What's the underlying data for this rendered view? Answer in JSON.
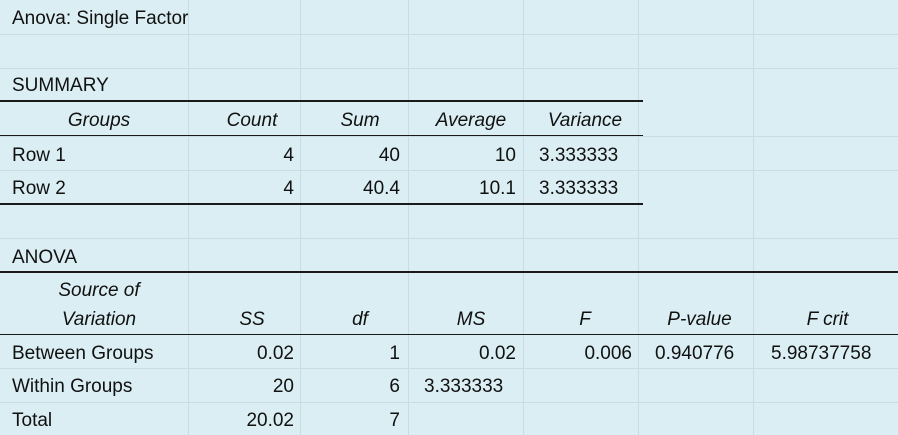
{
  "title": "Anova: Single Factor",
  "summary": {
    "label": "SUMMARY",
    "headers": [
      "Groups",
      "Count",
      "Sum",
      "Average",
      "Variance"
    ],
    "rows": [
      [
        "Row 1",
        "4",
        "40",
        "10",
        "3.333333"
      ],
      [
        "Row 2",
        "4",
        "40.4",
        "10.1",
        "3.333333"
      ]
    ]
  },
  "anova": {
    "label": "ANOVA",
    "source_line1": "Source of",
    "source_line2": "Variation",
    "headers": [
      "SS",
      "df",
      "MS",
      "F",
      "P-value",
      "F crit"
    ],
    "rows": [
      [
        "Between Groups",
        "0.02",
        "1",
        "0.02",
        "0.006",
        "0.940776",
        "5.98737758"
      ],
      [
        "Within Groups",
        "20",
        "6",
        "3.333333",
        "",
        "",
        ""
      ],
      [
        "Total",
        "20.02",
        "7",
        "",
        "",
        "",
        ""
      ]
    ]
  },
  "colors": {
    "background": "#daeef3",
    "gridline": "#c8dde3",
    "rule": "#1a1a1a"
  }
}
